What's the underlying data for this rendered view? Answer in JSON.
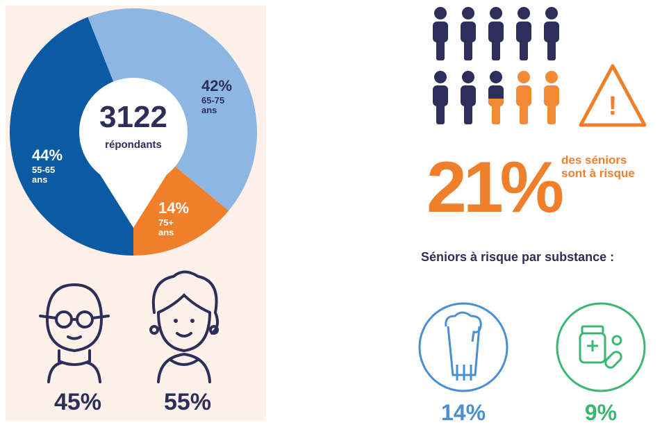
{
  "chart_data": {
    "type": "pie",
    "center_value": "3122",
    "center_label": "répondants",
    "categories": [
      "55-65 ans",
      "65-75 ans",
      "75+ ans"
    ],
    "values": [
      44,
      42,
      14
    ],
    "value_labels": [
      "44%",
      "42%",
      "14%"
    ],
    "colors": [
      "#0b5aa4",
      "#8db6e2",
      "#f07f2c"
    ]
  },
  "gender": [
    "45%",
    "55%"
  ],
  "risk": {
    "label": "21%",
    "text": "des séniors sont à risque"
  },
  "substance_title": "Séniors à risque par substance :",
  "substances": [
    {
      "label": "14%",
      "color": "#4a8fd4"
    },
    {
      "label": "9%",
      "color": "#3bb673"
    }
  ]
}
